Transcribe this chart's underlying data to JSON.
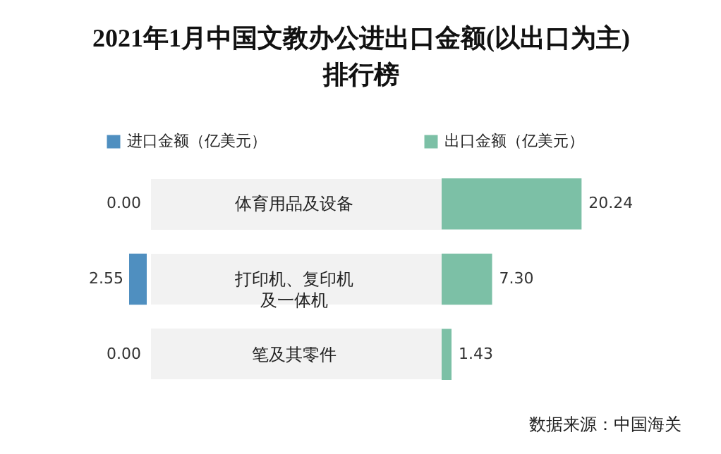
{
  "chart_data": [
    {
      "type": "bar",
      "orientation": "horizontal",
      "title": "2021年1月中国文教办公进出口金额(以出口为主)排行榜",
      "categories": [
        "体育用品及设备",
        "打印机、复印机及一体机",
        "笔及其零件"
      ],
      "tick_labels": false,
      "legend": "top right",
      "series": [
        {
          "name": "进口金额（亿美元）",
          "color": "#4f8fc0",
          "values": [
            0,
            2.55,
            0
          ],
          "value_labels": [
            "0.00",
            "2.55",
            "0.00"
          ]
        }
      ]
    },
    {
      "type": "bar",
      "orientation": "horizontal",
      "categories": [
        "体育用品及设备",
        "打印机、复印机及一体机",
        "笔及其零件"
      ],
      "tick_labels": "y",
      "legend": "top",
      "annotations": [
        "数据来源：中国海关"
      ],
      "series": [
        {
          "name": "出口金额（亿美元）",
          "color": "#7cc0a6",
          "values": [
            20.24,
            7.3,
            1.43
          ],
          "value_labels": [
            "20.24",
            "7.30",
            "1.43"
          ]
        }
      ]
    }
  ]
}
